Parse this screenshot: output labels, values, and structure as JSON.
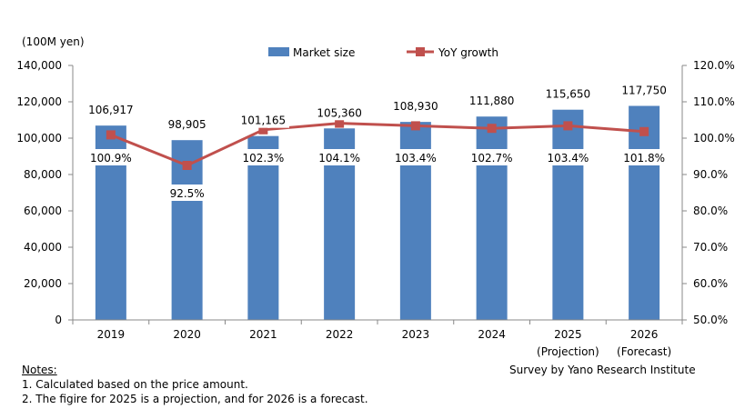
{
  "chart_data": {
    "type": "bar+line",
    "y_unit_label": "(100M yen)",
    "categories": [
      "2019",
      "2020",
      "2021",
      "2022",
      "2023",
      "2024",
      "2025",
      "2026"
    ],
    "category_sublabels": [
      "",
      "",
      "",
      "",
      "",
      "",
      "(Projection)",
      "(Forecast)"
    ],
    "series": [
      {
        "name": "Market size",
        "type": "bar",
        "axis": "left",
        "color": "#4F81BD",
        "values": [
          106917,
          98905,
          101165,
          105360,
          108930,
          111880,
          115650,
          117750
        ],
        "labels": [
          "106,917",
          "98,905",
          "101,165",
          "105,360",
          "108,930",
          "111,880",
          "115,650",
          "117,750"
        ]
      },
      {
        "name": "YoY growth",
        "type": "line",
        "axis": "right",
        "color": "#C0504D",
        "values": [
          100.9,
          92.5,
          102.3,
          104.1,
          103.4,
          102.7,
          103.4,
          101.8
        ],
        "labels": [
          "100.9%",
          "92.5%",
          "102.3%",
          "104.1%",
          "103.4%",
          "102.7%",
          "103.4%",
          "101.8%"
        ]
      }
    ],
    "left_axis": {
      "ylim": [
        0,
        140000
      ],
      "ticks": [
        "0",
        "20,000",
        "40,000",
        "60,000",
        "80,000",
        "100,000",
        "120,000",
        "140,000"
      ]
    },
    "right_axis": {
      "ylim": [
        50,
        120
      ],
      "ticks": [
        "50.0%",
        "60.0%",
        "70.0%",
        "80.0%",
        "90.0%",
        "100.0%",
        "110.0%",
        "120.0%"
      ]
    },
    "grid": false,
    "legend_placement": "top-center"
  },
  "notes": {
    "heading": "Notes:",
    "lines": [
      "1. Calculated based on the price amount.",
      "2. The figire for 2025 is a projection, and for 2026 is a forecast."
    ]
  },
  "source": "Survey by Yano Research Institute"
}
